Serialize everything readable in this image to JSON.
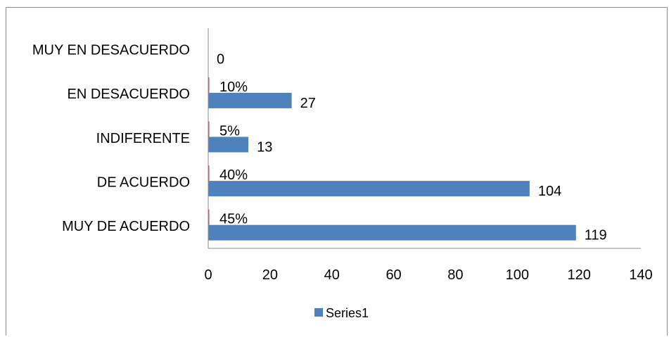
{
  "chart_data": {
    "type": "bar",
    "orientation": "horizontal",
    "categories": [
      "MUY DE ACUERDO",
      "DE ACUERDO",
      "INDIFERENTE",
      "EN DESACUERDO",
      "MUY EN DESACUERDO"
    ],
    "series": [
      {
        "name": "Series1",
        "values": [
          119,
          104,
          13,
          27,
          0
        ],
        "percent_labels": [
          "45%",
          "40%",
          "5%",
          "10%",
          ""
        ],
        "color": "#4f81bd"
      }
    ],
    "xlim": [
      0,
      140
    ],
    "xticks": [
      0,
      20,
      40,
      60,
      80,
      100,
      120,
      140
    ],
    "grid": false,
    "legend": "bottom"
  }
}
